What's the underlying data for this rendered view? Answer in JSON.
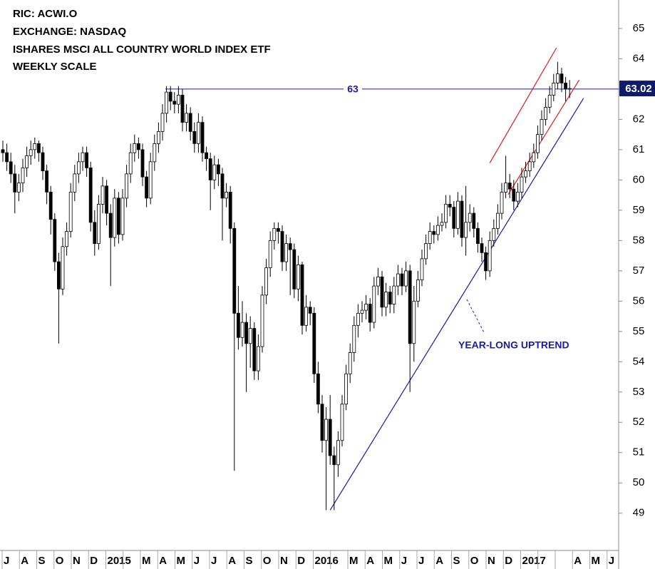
{
  "chart_data": {
    "type": "candlestick",
    "title": [
      "RIC: ACWI.O",
      "EXCHANGE: NASDAQ",
      "ISHARES MSCI ALL COUNTRY WORLD INDEX ETF",
      "WEEKLY SCALE"
    ],
    "months": [
      "J",
      "A",
      "S",
      "O",
      "N",
      "D",
      "2015",
      null,
      "M",
      "A",
      "M",
      "J",
      "J",
      "A",
      "S",
      "O",
      "N",
      "D",
      "2016",
      null,
      "M",
      "A",
      "M",
      "J",
      "J",
      "A",
      "S",
      "O",
      "N",
      "D",
      "2017",
      null,
      null,
      "A",
      "M",
      "J"
    ],
    "open": [
      61.0,
      60.9,
      60.6,
      60.2,
      59.6,
      59.9,
      60.4,
      60.8,
      61.0,
      61.2,
      60.9,
      60.3,
      59.6,
      58.7,
      57.3,
      56.4,
      57.8,
      58.3,
      59.6,
      60.2,
      60.6,
      60.9,
      60.4,
      58.6,
      57.9,
      59.2,
      59.8,
      58.9,
      58.1,
      59.4,
      58.2,
      59.4,
      60.2,
      60.9,
      61.2,
      61.0,
      60.1,
      59.4,
      60.6,
      61.2,
      61.6,
      62.2,
      62.9,
      62.6,
      62.5,
      62.8,
      61.9,
      62.2,
      61.6,
      61.2,
      61.9,
      60.9,
      60.7,
      60.0,
      60.5,
      60.2,
      59.4,
      59.6,
      58.4,
      55.6,
      54.8,
      55.3,
      54.6,
      55.1,
      53.7,
      54.5,
      56.2,
      57.1,
      58.0,
      58.4,
      58.3,
      57.3,
      57.9,
      57.7,
      56.4,
      57.2,
      55.2,
      55.8,
      55.6,
      53.6,
      52.6,
      51.4,
      52.1,
      50.9,
      50.6,
      51.4,
      52.6,
      53.6,
      54.3,
      55.2,
      55.6,
      55.7,
      55.9,
      55.3,
      56.5,
      56.8,
      55.8,
      56.3,
      55.9,
      56.5,
      56.9,
      56.5,
      57.0,
      54.6,
      56.0,
      56.7,
      57.4,
      57.9,
      58.3,
      58.2,
      58.5,
      58.6,
      59.2,
      59.1,
      58.4,
      59.3,
      58.1,
      58.6,
      58.9,
      58.4,
      57.9,
      57.6,
      57.0,
      58.0,
      58.4,
      58.9,
      59.6,
      59.9,
      59.7,
      59.3,
      59.6,
      60.1,
      60.3,
      60.6,
      60.9,
      61.5,
      62.0,
      62.4,
      62.8,
      63.2,
      63.5,
      63.2,
      63.0
    ],
    "high": [
      61.3,
      61.2,
      60.9,
      60.5,
      60.2,
      60.7,
      61.1,
      61.3,
      61.4,
      61.3,
      61.1,
      60.5,
      59.8,
      58.9,
      57.6,
      58.1,
      58.6,
      59.9,
      60.5,
      60.9,
      61.1,
      61.1,
      60.6,
      59.0,
      59.5,
      60.1,
      60.0,
      59.2,
      59.7,
      59.6,
      59.7,
      60.5,
      61.2,
      61.5,
      61.4,
      61.2,
      60.3,
      60.9,
      61.5,
      61.9,
      62.5,
      63.1,
      63.1,
      62.9,
      63.1,
      63.0,
      62.5,
      62.4,
      61.9,
      62.2,
      62.1,
      61.1,
      60.9,
      60.8,
      60.7,
      60.4,
      59.9,
      59.8,
      58.6,
      56.5,
      56.0,
      55.6,
      55.5,
      55.3,
      54.9,
      56.5,
      57.4,
      58.3,
      58.6,
      58.6,
      58.5,
      58.2,
      58.1,
      57.9,
      57.5,
      57.3,
      56.2,
      56.0,
      55.8,
      54.0,
      52.9,
      52.5,
      52.9,
      51.2,
      51.7,
      52.9,
      53.9,
      54.6,
      55.5,
      55.9,
      56.0,
      56.2,
      56.1,
      56.8,
      57.1,
      57.0,
      56.6,
      56.5,
      56.8,
      57.2,
      57.1,
      57.3,
      57.2,
      56.5,
      57.0,
      57.7,
      58.2,
      58.6,
      58.5,
      58.8,
      58.9,
      59.5,
      59.5,
      59.3,
      59.6,
      59.5,
      59.8,
      59.2,
      59.1,
      58.6,
      58.1,
      57.8,
      58.3,
      58.7,
      59.2,
      59.9,
      60.8,
      60.2,
      60.0,
      59.9,
      60.4,
      60.6,
      60.9,
      61.2,
      61.8,
      62.3,
      62.7,
      63.1,
      63.5,
      63.9,
      63.7,
      63.4,
      63.3
    ],
    "low": [
      60.6,
      60.3,
      59.9,
      58.9,
      59.3,
      59.6,
      60.1,
      60.5,
      60.7,
      60.6,
      60.0,
      59.2,
      58.2,
      57.0,
      54.6,
      56.2,
      57.5,
      58.1,
      59.3,
      59.9,
      60.3,
      60.1,
      58.3,
      57.5,
      57.7,
      58.9,
      58.5,
      56.5,
      57.8,
      57.9,
      58.0,
      59.1,
      59.9,
      60.6,
      60.7,
      59.8,
      59.1,
      59.2,
      60.3,
      60.9,
      61.3,
      61.9,
      62.3,
      62.2,
      62.2,
      61.6,
      61.6,
      61.3,
      60.9,
      60.9,
      60.6,
      60.3,
      59.0,
      59.7,
      59.8,
      58.0,
      59.1,
      57.9,
      50.4,
      54.4,
      54.5,
      53.0,
      53.8,
      53.4,
      53.4,
      54.3,
      55.9,
      56.8,
      57.7,
      57.9,
      57.0,
      57.0,
      56.2,
      56.1,
      56.0,
      54.9,
      55.0,
      55.2,
      53.3,
      52.3,
      51.0,
      49.1,
      50.6,
      49.1,
      50.2,
      51.2,
      52.4,
      53.3,
      54.0,
      54.8,
      55.3,
      55.4,
      55.0,
      55.1,
      56.2,
      55.5,
      55.5,
      55.6,
      55.6,
      56.2,
      56.2,
      56.3,
      53.0,
      54.0,
      55.8,
      56.5,
      57.2,
      57.7,
      57.9,
      58.0,
      58.3,
      58.4,
      58.8,
      58.1,
      58.2,
      57.8,
      57.5,
      58.3,
      58.1,
      57.6,
      57.3,
      56.7,
      56.8,
      57.8,
      58.2,
      58.7,
      59.4,
      59.4,
      59.0,
      59.1,
      59.4,
      59.9,
      60.1,
      60.4,
      60.7,
      61.3,
      61.8,
      62.2,
      62.6,
      63.0,
      62.9,
      62.6,
      62.7
    ],
    "close": [
      60.9,
      60.6,
      60.2,
      59.6,
      59.9,
      60.4,
      60.8,
      61.0,
      61.2,
      60.9,
      60.3,
      59.6,
      58.7,
      57.3,
      56.4,
      57.8,
      58.3,
      59.6,
      60.2,
      60.6,
      60.9,
      60.4,
      58.6,
      57.9,
      59.2,
      59.8,
      58.9,
      58.1,
      59.4,
      58.2,
      59.4,
      60.2,
      60.9,
      61.2,
      61.0,
      60.1,
      59.4,
      60.6,
      61.2,
      61.6,
      62.2,
      62.9,
      62.6,
      62.5,
      62.8,
      61.9,
      62.2,
      61.6,
      61.2,
      61.9,
      60.9,
      60.7,
      60.0,
      60.5,
      60.2,
      59.4,
      59.6,
      58.4,
      55.6,
      54.8,
      55.3,
      54.6,
      55.1,
      53.7,
      54.5,
      56.2,
      57.1,
      58.0,
      58.4,
      58.3,
      57.3,
      57.9,
      57.7,
      56.4,
      57.2,
      55.2,
      55.8,
      55.6,
      53.6,
      52.6,
      51.4,
      52.1,
      50.9,
      50.6,
      51.4,
      52.6,
      53.6,
      54.3,
      55.2,
      55.6,
      55.7,
      55.9,
      55.3,
      56.5,
      56.8,
      55.8,
      56.3,
      55.9,
      56.5,
      56.9,
      56.5,
      57.0,
      54.6,
      56.0,
      56.7,
      57.4,
      57.9,
      58.3,
      58.2,
      58.5,
      58.6,
      59.2,
      59.1,
      58.4,
      59.3,
      58.1,
      58.6,
      58.9,
      58.4,
      57.9,
      57.6,
      57.0,
      58.0,
      58.4,
      58.9,
      59.6,
      59.9,
      59.7,
      59.3,
      59.6,
      60.1,
      60.3,
      60.6,
      60.9,
      61.5,
      62.0,
      62.4,
      62.8,
      63.2,
      63.5,
      63.2,
      63.0,
      63.02
    ],
    "ylim": [
      47.77,
      65.94
    ],
    "yticks": [
      49,
      50,
      51,
      52,
      53,
      54,
      55,
      56,
      57,
      58,
      59,
      60,
      61,
      62,
      63,
      64,
      65
    ],
    "resistance": 63,
    "uptrend": {
      "label": "YEAR-LONG UPTREND",
      "start": [
        82,
        49.1
      ],
      "end": [
        145.5,
        62.7
      ],
      "color": "#1a1aa6"
    },
    "channel": [
      {
        "start": [
          122,
          60.56
        ],
        "end": [
          138.7,
          64.36
        ]
      },
      {
        "start": [
          126.6,
          59.52
        ],
        "end": [
          144.4,
          63.3
        ]
      }
    ],
    "channel_color": "#e01b1b",
    "resistance_color": "#1a1aa6",
    "tag_color": "#0d1b6e"
  }
}
